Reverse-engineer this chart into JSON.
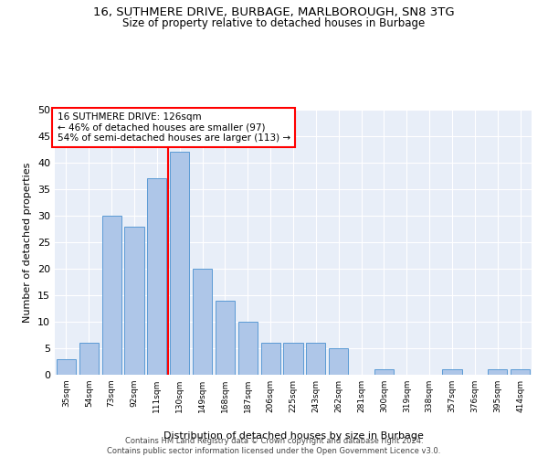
{
  "title": "16, SUTHMERE DRIVE, BURBAGE, MARLBOROUGH, SN8 3TG",
  "subtitle": "Size of property relative to detached houses in Burbage",
  "xlabel": "Distribution of detached houses by size in Burbage",
  "ylabel": "Number of detached properties",
  "categories": [
    "35sqm",
    "54sqm",
    "73sqm",
    "92sqm",
    "111sqm",
    "130sqm",
    "149sqm",
    "168sqm",
    "187sqm",
    "206sqm",
    "225sqm",
    "243sqm",
    "262sqm",
    "281sqm",
    "300sqm",
    "319sqm",
    "338sqm",
    "357sqm",
    "376sqm",
    "395sqm",
    "414sqm"
  ],
  "values": [
    3,
    6,
    30,
    28,
    37,
    42,
    20,
    14,
    10,
    6,
    6,
    6,
    5,
    0,
    1,
    0,
    0,
    1,
    0,
    1,
    1
  ],
  "bar_color": "#aec6e8",
  "bar_edge_color": "#5b9bd5",
  "vline_color": "red",
  "vline_x": 4.5,
  "annotation_text_line1": "16 SUTHMERE DRIVE: 126sqm",
  "annotation_text_line2": "← 46% of detached houses are smaller (97)",
  "annotation_text_line3": "54% of semi-detached houses are larger (113) →",
  "annotation_box_color": "white",
  "annotation_box_edge": "red",
  "ylim": [
    0,
    50
  ],
  "yticks": [
    0,
    5,
    10,
    15,
    20,
    25,
    30,
    35,
    40,
    45,
    50
  ],
  "bg_color": "#e8eef8",
  "grid_color": "white",
  "title_fontsize": 9.5,
  "subtitle_fontsize": 8.5,
  "footnote": "Contains HM Land Registry data © Crown copyright and database right 2024.\nContains public sector information licensed under the Open Government Licence v3.0."
}
